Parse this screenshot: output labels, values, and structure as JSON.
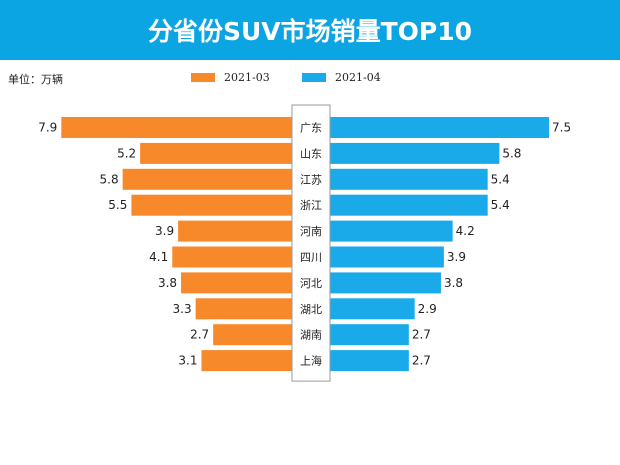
{
  "title": "分省份SUV市场销量TOP10",
  "unit_label": "单位：万辆",
  "colors": {
    "header": "#0ba5e3",
    "left_series": "#f7892a",
    "right_series": "#1aaaea",
    "label_box_border": "#9a9a9a"
  },
  "chart_data": {
    "type": "bar",
    "orientation": "horizontal-butterfly",
    "title": "分省份SUV市场销量TOP10",
    "unit": "单位：万辆",
    "legend_position": "top",
    "categories": [
      "广东",
      "山东",
      "江苏",
      "浙江",
      "河南",
      "四川",
      "河北",
      "湖北",
      "湖南",
      "上海"
    ],
    "series": [
      {
        "name": "2021-03",
        "side": "left",
        "color": "#f7892a",
        "values": [
          7.9,
          5.2,
          5.8,
          5.5,
          3.9,
          4.1,
          3.8,
          3.3,
          2.7,
          3.1
        ]
      },
      {
        "name": "2021-04",
        "side": "right",
        "color": "#1aaaea",
        "values": [
          7.5,
          5.8,
          5.4,
          5.4,
          4.2,
          3.9,
          3.8,
          2.9,
          2.7,
          2.7
        ]
      }
    ]
  }
}
